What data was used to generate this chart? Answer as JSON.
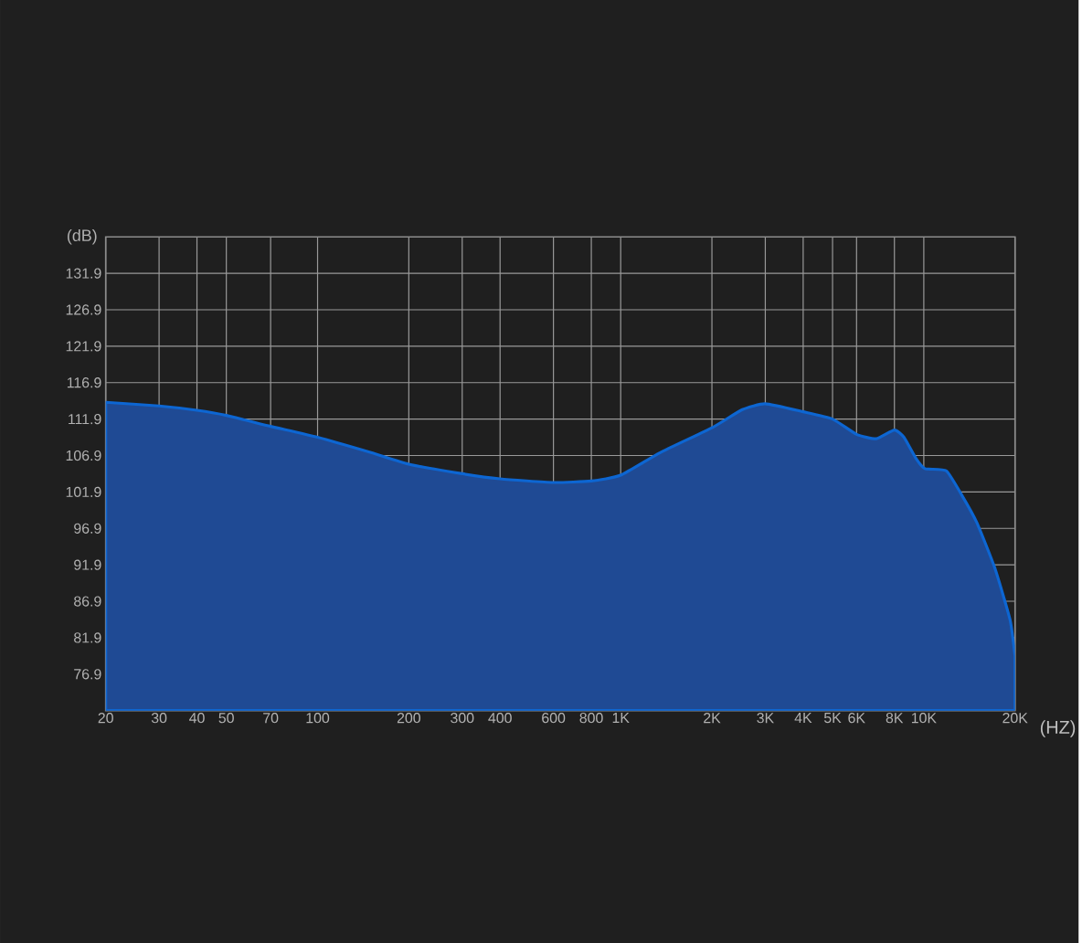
{
  "chart_data": {
    "type": "area",
    "xlabel": "(HZ)",
    "ylabel": "(dB)",
    "log": "x",
    "grid": true,
    "color": "#1f4a94",
    "x": [
      20,
      30,
      40,
      50,
      70,
      100,
      150,
      200,
      300,
      400,
      600,
      800,
      1000,
      1350,
      2000,
      2520,
      3000,
      4000,
      5000,
      6000,
      6970,
      8000,
      8600,
      9420,
      10090,
      11860,
      13330,
      14960,
      17140,
      19250,
      20000
    ],
    "values": [
      114.2,
      113.7,
      113.1,
      112.4,
      110.9,
      109.4,
      107.3,
      105.7,
      104.4,
      103.7,
      103.2,
      103.4,
      104.2,
      107.3,
      110.7,
      113.2,
      114.0,
      112.9,
      111.9,
      109.8,
      109.2,
      110.4,
      109.4,
      106.5,
      105.1,
      104.8,
      101.5,
      97.7,
      91.5,
      84.4,
      79.4
    ],
    "xlim": [
      20,
      20000
    ],
    "ylim": [
      71.9,
      136.9
    ],
    "xticks": [
      20,
      30,
      40,
      50,
      70,
      100,
      200,
      300,
      400,
      600,
      800,
      {
        "value": 1000,
        "label": "1K"
      },
      {
        "value": 2000,
        "label": "2K"
      },
      {
        "value": 3000,
        "label": "3K"
      },
      {
        "value": 4000,
        "label": "4K"
      },
      {
        "value": 5000,
        "label": "5K"
      },
      {
        "value": 6000,
        "label": "6K"
      },
      {
        "value": 8000,
        "label": "8K"
      },
      {
        "value": 10000,
        "label": "10K"
      },
      {
        "value": 20000,
        "label": "20K"
      }
    ],
    "yticks": [
      76.9,
      81.9,
      86.9,
      91.9,
      96.9,
      101.9,
      106.9,
      111.9,
      116.9,
      121.9,
      126.9,
      131.9
    ]
  }
}
